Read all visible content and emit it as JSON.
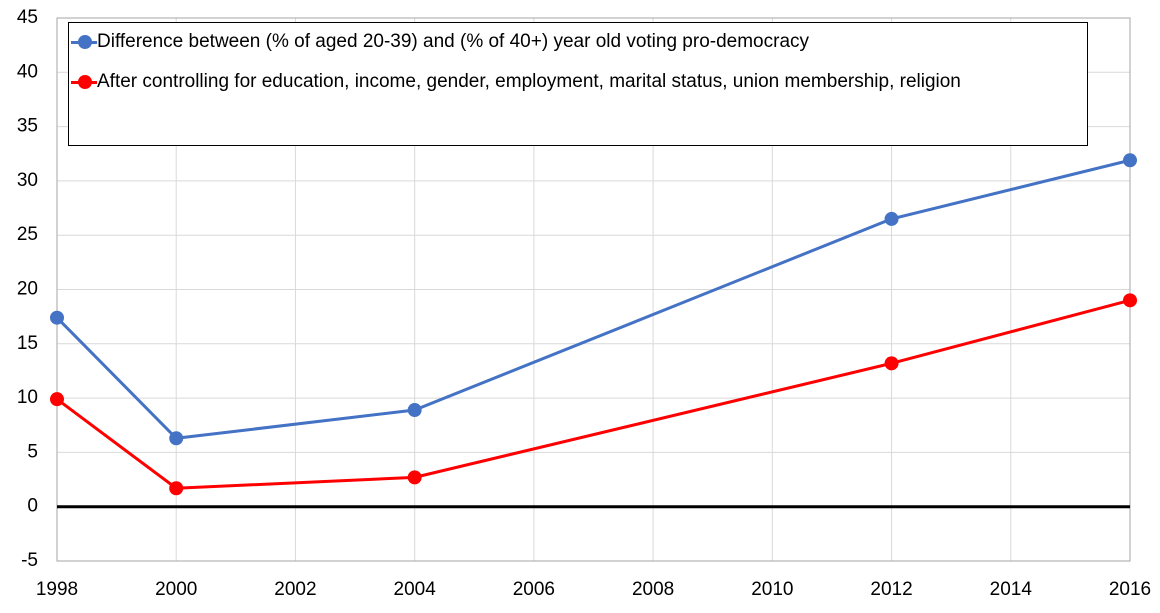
{
  "chart_data": {
    "type": "line",
    "x": [
      1998,
      2000,
      2004,
      2012,
      2016
    ],
    "series": [
      {
        "name": "Difference between (% of aged 20-39) and (% of 40+) year old voting pro-democracy",
        "color": "#4472c4",
        "values": [
          17.4,
          6.3,
          8.9,
          26.5,
          31.9
        ]
      },
      {
        "name": "After controlling for education, income, gender, employment, marital status, union membership, religion",
        "color": "#ff0000",
        "values": [
          9.9,
          1.7,
          2.7,
          13.2,
          19.0
        ]
      }
    ],
    "xlim": [
      1998,
      2016
    ],
    "xticks": [
      1998,
      2000,
      2002,
      2004,
      2006,
      2008,
      2010,
      2012,
      2014,
      2016
    ],
    "ylim": [
      -5,
      45
    ],
    "yticks": [
      -5,
      0,
      5,
      10,
      15,
      20,
      25,
      30,
      35,
      40,
      45
    ],
    "grid": true,
    "legend": "top"
  }
}
